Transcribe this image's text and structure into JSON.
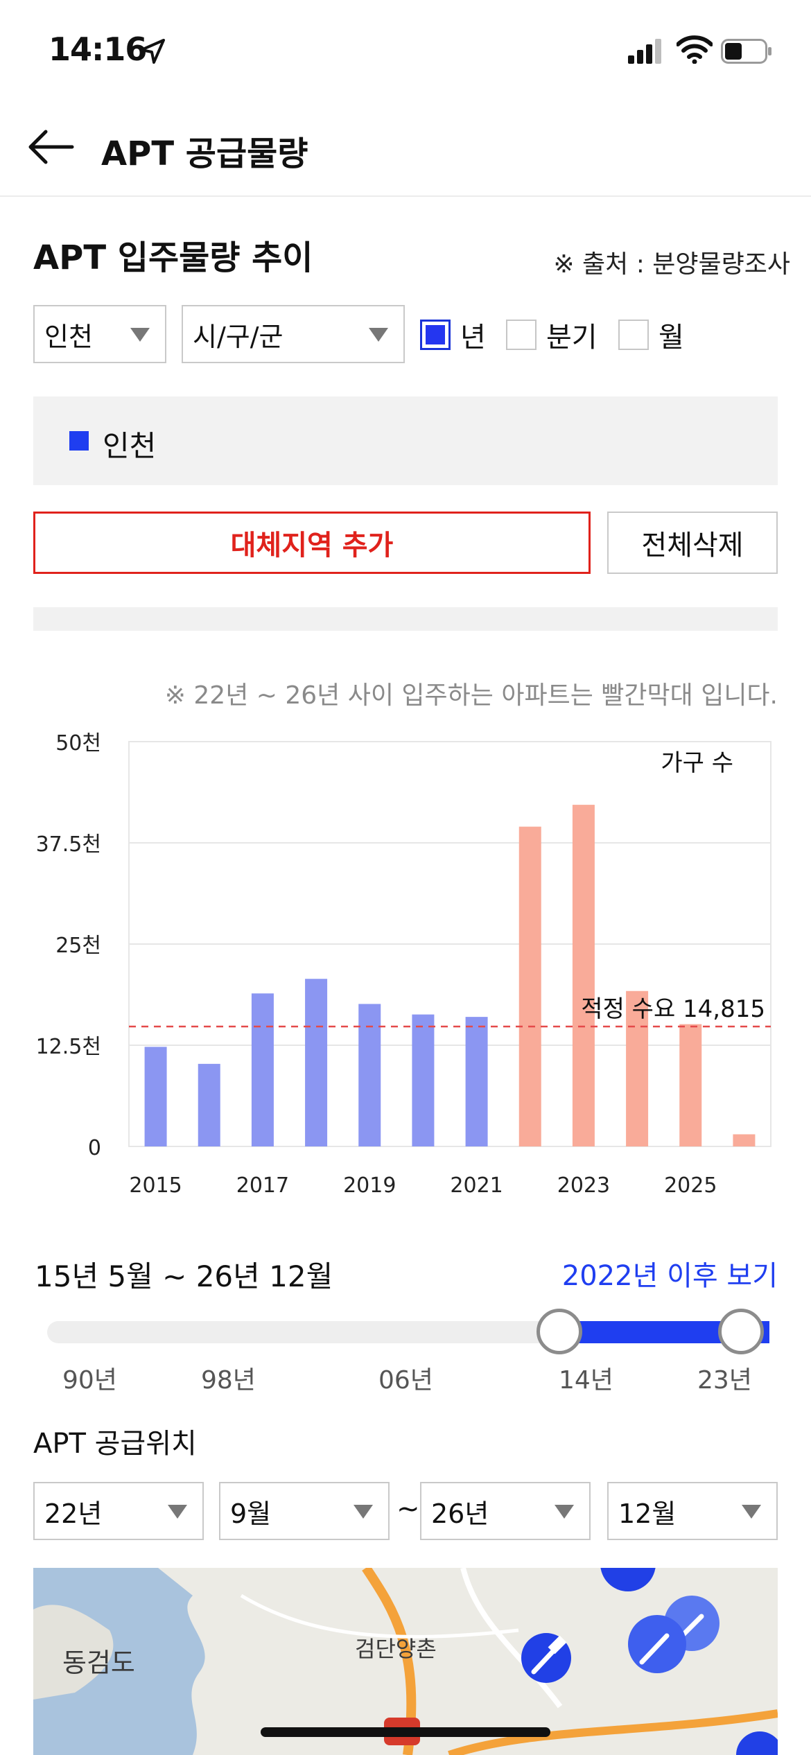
{
  "status_bar": {
    "time": "14:16"
  },
  "header": {
    "title": "APT 공급물량"
  },
  "section": {
    "title": "APT 입주물량 추이",
    "source": "※ 출처 : 분양물량조사"
  },
  "filters": {
    "region": "인천",
    "district": "시/구/군",
    "period_options": [
      {
        "label": "년",
        "checked": true
      },
      {
        "label": "분기",
        "checked": false
      },
      {
        "label": "월",
        "checked": false
      }
    ]
  },
  "legend": {
    "label": "인천",
    "color": "#1f3ef0"
  },
  "buttons": {
    "add_region": "대체지역 추가",
    "delete_all": "전체삭제"
  },
  "note": "※ 22년 ~ 26년 사이 입주하는 아파트는 빨간막대 입니다.",
  "chart_data": {
    "type": "bar",
    "x": [
      2015,
      2016,
      2017,
      2018,
      2019,
      2020,
      2021,
      2022,
      2023,
      2024,
      2025,
      2026
    ],
    "x_tick_labels": [
      "2015",
      "2017",
      "2019",
      "2021",
      "2023",
      "2025"
    ],
    "values": [
      12300,
      10200,
      18900,
      20700,
      17600,
      16300,
      16000,
      39500,
      42200,
      19200,
      15100,
      1500
    ],
    "colors": [
      "#8b96f2",
      "#8b96f2",
      "#8b96f2",
      "#8b96f2",
      "#8b96f2",
      "#8b96f2",
      "#8b96f2",
      "#f9ab99",
      "#f9ab99",
      "#f9ab99",
      "#f9ab99",
      "#f9ab99"
    ],
    "ylim": [
      0,
      50000
    ],
    "y_ticks": [
      "0",
      "12.5천",
      "25천",
      "37.5천",
      "50천"
    ],
    "unit_label": "가구 수",
    "reference_line": {
      "value": 14815,
      "label": "적정 수요 14,815",
      "color": "#e44a4a"
    }
  },
  "range": {
    "label": "15년 5월 ~ 26년 12월",
    "after_link": "2022년 이후 보기",
    "ticks": [
      "90년",
      "98년",
      "06년",
      "14년",
      "23년"
    ]
  },
  "location": {
    "title": "APT 공급위치",
    "from_year": "22년",
    "from_month": "9월",
    "separator": "~",
    "to_year": "26년",
    "to_month": "12월"
  },
  "map": {
    "labels": [
      "동검도",
      "검단양촌"
    ]
  }
}
